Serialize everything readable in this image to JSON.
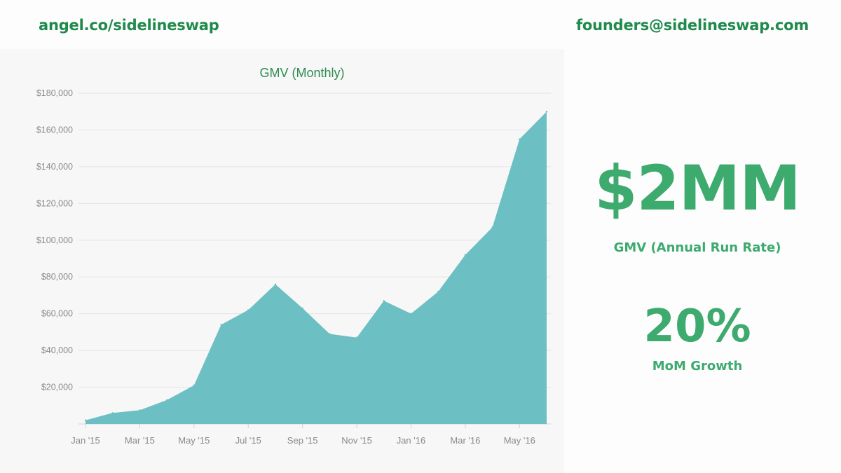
{
  "header": {
    "left_link": "angel.co/sidelineswap",
    "right_link": "founders@sidelineswap.com"
  },
  "stats": {
    "run_rate_value": "$2MM",
    "run_rate_caption": "GMV (Annual Run Rate)",
    "growth_value": "20%",
    "growth_caption": "MoM Growth"
  },
  "colors": {
    "brand_green": "#1f8a4c",
    "stat_green": "#3daa6e",
    "area_fill": "#6cbfc2",
    "title_green": "#2f8a52"
  },
  "chart_data": {
    "type": "area",
    "title": "GMV (Monthly)",
    "xlabel": "",
    "ylabel": "",
    "x": [
      "Jan '15",
      "Feb '15",
      "Mar '15",
      "Apr '15",
      "May '15",
      "Jun '15",
      "Jul '15",
      "Aug '15",
      "Sep '15",
      "Oct '15",
      "Nov '15",
      "Dec '15",
      "Jan '16",
      "Feb '16",
      "Mar '16",
      "Apr '16",
      "May '16",
      "Jun '16"
    ],
    "x_tick_labels": [
      "Jan '15",
      "Mar '15",
      "May '15",
      "Jul '15",
      "Sep '15",
      "Nov '15",
      "Jan '16",
      "Mar '16",
      "May '16"
    ],
    "values": [
      2000,
      6000,
      7500,
      13000,
      21000,
      54000,
      62000,
      76000,
      63000,
      49000,
      47000,
      67000,
      60000,
      72000,
      92000,
      107000,
      155000,
      170000
    ],
    "ylim": [
      0,
      180000
    ],
    "y_ticks": [
      20000,
      40000,
      60000,
      80000,
      100000,
      120000,
      140000,
      160000,
      180000
    ],
    "y_tick_labels": [
      "$20,000",
      "$40,000",
      "$60,000",
      "$80,000",
      "$100,000",
      "$120,000",
      "$140,000",
      "$160,000",
      "$180,000"
    ],
    "grid": true,
    "legend": "none"
  }
}
